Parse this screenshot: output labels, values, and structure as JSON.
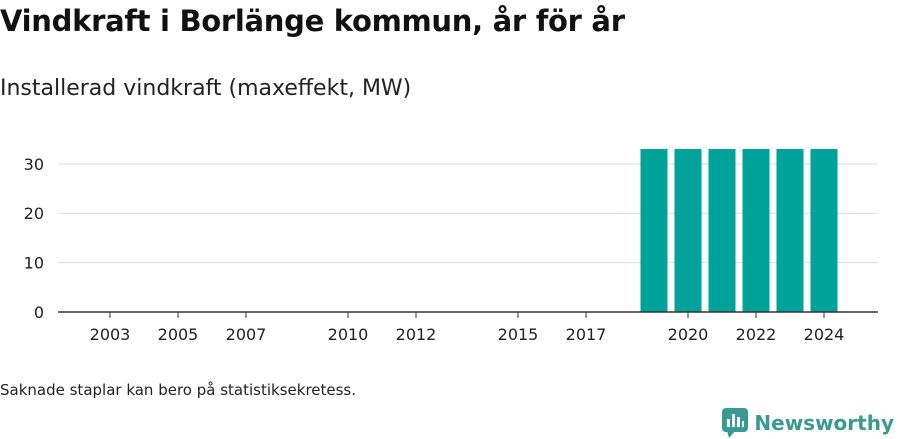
{
  "header": {
    "title": "Vindkraft i Borlänge kommun, år för år",
    "subtitle": "Installerad vindkraft (maxeffekt, MW)"
  },
  "footnote": "Saknade staplar kan bero på statistiksekretess.",
  "brand": {
    "name": "Newsworthy",
    "icon": "newsworthy-logo-icon",
    "color": "#3a9a91"
  },
  "chart_data": {
    "type": "bar",
    "x": [
      2003,
      2004,
      2005,
      2006,
      2007,
      2008,
      2009,
      2010,
      2011,
      2012,
      2013,
      2014,
      2015,
      2016,
      2017,
      2018,
      2019,
      2020,
      2021,
      2022,
      2023,
      2024
    ],
    "values": [
      0,
      0,
      0,
      0,
      0,
      0,
      0,
      0,
      0,
      0,
      0,
      0,
      0,
      0,
      0,
      0,
      33,
      33,
      33,
      33,
      33,
      33
    ],
    "xticks": [
      2003,
      2005,
      2007,
      2010,
      2012,
      2015,
      2017,
      2020,
      2022,
      2024
    ],
    "yticks": [
      0,
      10,
      20,
      30
    ],
    "ylim": [
      0,
      33
    ],
    "bar_color": "#00a39a",
    "grid": true,
    "legend": "none"
  }
}
